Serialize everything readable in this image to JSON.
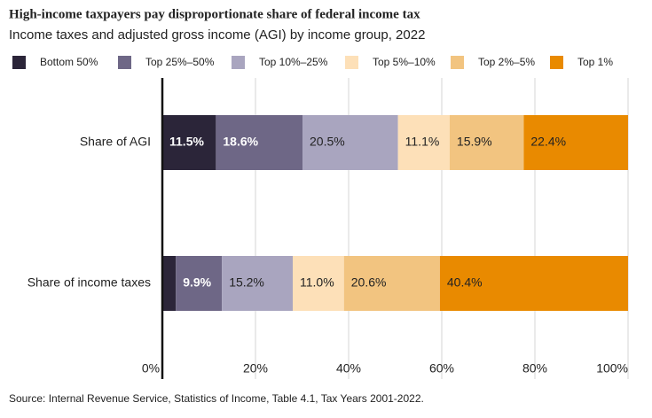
{
  "chart_data": {
    "type": "stacked-barh",
    "title": "High-income taxpayers pay disproportionate share of federal income tax",
    "subtitle": "Income taxes and adjusted gross income (AGI) by income group, 2022",
    "source": "Source: Internal Revenue Service, Statistics of Income, Table 4.1, Tax Years 2001-2022.",
    "categories": [
      "Share of AGI",
      "Share of income taxes"
    ],
    "series": [
      {
        "name": "Bottom 50%",
        "color": "#2b2539",
        "values": [
          11.5,
          2.9
        ],
        "value_labels": [
          "11.5%",
          null
        ]
      },
      {
        "name": "Top 25%–50%",
        "color": "#6e6786",
        "values": [
          18.6,
          9.9
        ],
        "value_labels": [
          "18.6%",
          "9.9%"
        ]
      },
      {
        "name": "Top 10%–25%",
        "color": "#a9a5bf",
        "values": [
          20.5,
          15.2
        ],
        "value_labels": [
          "20.5%",
          "15.2%"
        ]
      },
      {
        "name": "Top 5%–10%",
        "color": "#fde0b8",
        "values": [
          11.1,
          11.0
        ],
        "value_labels": [
          "11.1%",
          "11.0%"
        ]
      },
      {
        "name": "Top 2%–5%",
        "color": "#f2c480",
        "values": [
          15.9,
          20.6
        ],
        "value_labels": [
          "15.9%",
          "20.6%"
        ]
      },
      {
        "name": "Top 1%",
        "color": "#e98a00",
        "values": [
          22.4,
          40.4
        ],
        "value_labels": [
          "22.4%",
          "40.4%"
        ]
      }
    ],
    "xlim": [
      0,
      100
    ],
    "xticks": [
      {
        "value": 0,
        "label": "0%"
      },
      {
        "value": 20,
        "label": "20%"
      },
      {
        "value": 40,
        "label": "40%"
      },
      {
        "value": 60,
        "label": "60%"
      },
      {
        "value": 80,
        "label": "80%"
      },
      {
        "value": 100,
        "label": "100%"
      }
    ],
    "grid": true
  }
}
